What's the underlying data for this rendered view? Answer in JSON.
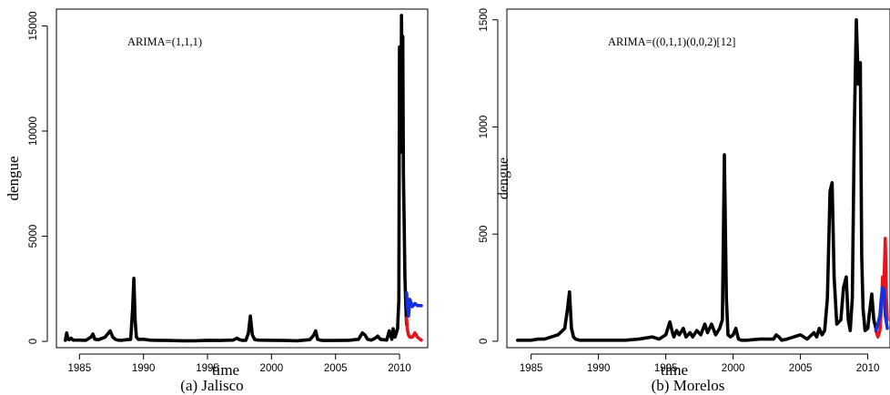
{
  "chart_data": [
    {
      "type": "line",
      "caption": "(a)  Jalisco",
      "annotation": "ARIMA=(1,1,1)",
      "xlabel": "time",
      "ylabel": "dengue",
      "xlim": [
        1983.2,
        2012.2
      ],
      "ylim": [
        -300,
        15800
      ],
      "x_ticks": [
        1985,
        1990,
        1995,
        2000,
        2005,
        2010
      ],
      "y_ticks": [
        0,
        5000,
        10000,
        15000
      ],
      "box": true,
      "series": [
        {
          "color": "#000000",
          "x": [
            1983.9,
            1984.0,
            1984.1,
            1984.2,
            1984.35,
            1984.5,
            1985.0,
            1985.5,
            1985.9,
            1986.05,
            1986.2,
            1986.5,
            1987.0,
            1987.4,
            1987.6,
            1987.8,
            1988.0,
            1988.3,
            1988.7,
            1989.0,
            1989.15,
            1989.25,
            1989.35,
            1989.45,
            1989.6,
            1990.0,
            1990.5,
            1991.0,
            1992.0,
            1993.0,
            1994.0,
            1995.0,
            1996.0,
            1997.0,
            1997.3,
            1997.5,
            1997.7,
            1998.0,
            1998.2,
            1998.35,
            1998.5,
            1998.7,
            1999.0,
            2000.0,
            2001.0,
            2002.0,
            2003.0,
            2003.3,
            2003.45,
            2003.6,
            2003.8,
            2004.0,
            2005.0,
            2006.0,
            2006.8,
            2007.1,
            2007.3,
            2007.5,
            2007.8,
            2008.1,
            2008.3,
            2008.5,
            2008.7,
            2009.0,
            2009.2,
            2009.4,
            2009.5,
            2009.65,
            2009.75,
            2009.85,
            2009.95,
            2010.0,
            2010.05,
            2010.1,
            2010.15,
            2010.2,
            2010.25,
            2010.3,
            2010.35,
            2010.42,
            2010.5,
            2010.55
          ],
          "y": [
            50,
            400,
            100,
            80,
            150,
            60,
            60,
            50,
            200,
            350,
            100,
            80,
            200,
            500,
            200,
            100,
            60,
            50,
            80,
            100,
            1500,
            3000,
            1000,
            200,
            100,
            100,
            60,
            50,
            40,
            30,
            30,
            50,
            40,
            60,
            150,
            80,
            50,
            50,
            400,
            1200,
            300,
            80,
            60,
            50,
            40,
            30,
            80,
            300,
            500,
            100,
            60,
            40,
            40,
            50,
            100,
            400,
            300,
            100,
            60,
            150,
            250,
            100,
            80,
            60,
            500,
            100,
            600,
            200,
            400,
            600,
            2000,
            14000,
            12000,
            9000,
            15500,
            11000,
            14500,
            8000,
            6000,
            3000,
            1500,
            800
          ]
        },
        {
          "color": "#e8141c",
          "x": [
            2010.55,
            2010.6,
            2010.7,
            2010.8,
            2011.0,
            2011.2,
            2011.4,
            2011.55,
            2011.7
          ],
          "y": [
            1100,
            600,
            300,
            200,
            200,
            400,
            200,
            120,
            60
          ]
        },
        {
          "color": "#1430e0",
          "x": [
            2010.55,
            2010.6,
            2010.7,
            2010.8,
            2011.0,
            2011.2,
            2011.4,
            2011.55,
            2011.7
          ],
          "y": [
            2300,
            1800,
            1200,
            2000,
            1650,
            1800,
            1700,
            1700,
            1700
          ]
        }
      ]
    },
    {
      "type": "line",
      "caption": "(b)  Morelos",
      "annotation": "ARIMA=((0,1,1)(0,0,2)[12]",
      "xlabel": "time",
      "ylabel": "dengue",
      "xlim": [
        1983.2,
        2011.65
      ],
      "ylim": [
        -30,
        1550
      ],
      "x_ticks": [
        1985,
        1990,
        1995,
        2000,
        2005,
        2010
      ],
      "y_ticks": [
        0,
        500,
        1000,
        1500
      ],
      "box": true,
      "series": [
        {
          "color": "#000000",
          "x": [
            1984.0,
            1984.5,
            1985.0,
            1985.5,
            1986.0,
            1986.5,
            1987.0,
            1987.5,
            1987.7,
            1987.85,
            1988.0,
            1988.15,
            1988.3,
            1988.6,
            1989.0,
            1990.0,
            1991.0,
            1992.0,
            1993.0,
            1994.0,
            1994.5,
            1995.0,
            1995.3,
            1995.5,
            1995.6,
            1995.8,
            1996.0,
            1996.3,
            1996.5,
            1996.8,
            1997.0,
            1997.3,
            1997.6,
            1997.9,
            1998.1,
            1998.4,
            1998.7,
            1999.0,
            1999.2,
            1999.35,
            1999.5,
            1999.62,
            1999.8,
            2000.0,
            2000.2,
            2000.4,
            2000.6,
            2000.8,
            2001.0,
            2002.0,
            2003.0,
            2003.2,
            2003.4,
            2003.6,
            2004.0,
            2004.5,
            2005.0,
            2005.5,
            2006.0,
            2006.2,
            2006.4,
            2006.6,
            2006.8,
            2007.0,
            2007.2,
            2007.35,
            2007.5,
            2007.7,
            2008.0,
            2008.2,
            2008.4,
            2008.55,
            2008.7,
            2008.85,
            2009.0,
            2009.15,
            2009.3,
            2009.45,
            2009.55,
            2009.65,
            2009.8,
            2010.0,
            2010.1,
            2010.3,
            2010.45,
            2010.6
          ],
          "y": [
            5,
            5,
            5,
            10,
            10,
            20,
            30,
            60,
            150,
            230,
            60,
            20,
            10,
            5,
            5,
            5,
            5,
            5,
            10,
            20,
            10,
            30,
            90,
            40,
            20,
            50,
            30,
            60,
            20,
            40,
            20,
            50,
            30,
            80,
            40,
            80,
            30,
            60,
            100,
            870,
            200,
            30,
            20,
            30,
            60,
            10,
            5,
            5,
            5,
            10,
            10,
            30,
            20,
            5,
            10,
            20,
            30,
            10,
            40,
            20,
            60,
            30,
            50,
            200,
            700,
            740,
            300,
            80,
            100,
            250,
            300,
            100,
            50,
            200,
            1000,
            1500,
            1200,
            1300,
            400,
            150,
            50,
            60,
            120,
            220,
            100,
            60
          ]
        },
        {
          "color": "#e8141c",
          "x": [
            2010.6,
            2010.75,
            2010.9,
            2011.0,
            2011.1,
            2011.2,
            2011.3,
            2011.38,
            2011.45
          ],
          "y": [
            50,
            20,
            50,
            150,
            300,
            250,
            480,
            200,
            100
          ]
        },
        {
          "color": "#1430e0",
          "x": [
            2010.6,
            2010.75,
            2010.9,
            2011.0,
            2011.1,
            2011.2,
            2011.3,
            2011.38,
            2011.45
          ],
          "y": [
            50,
            80,
            120,
            200,
            250,
            240,
            120,
            90,
            60
          ]
        }
      ]
    }
  ]
}
